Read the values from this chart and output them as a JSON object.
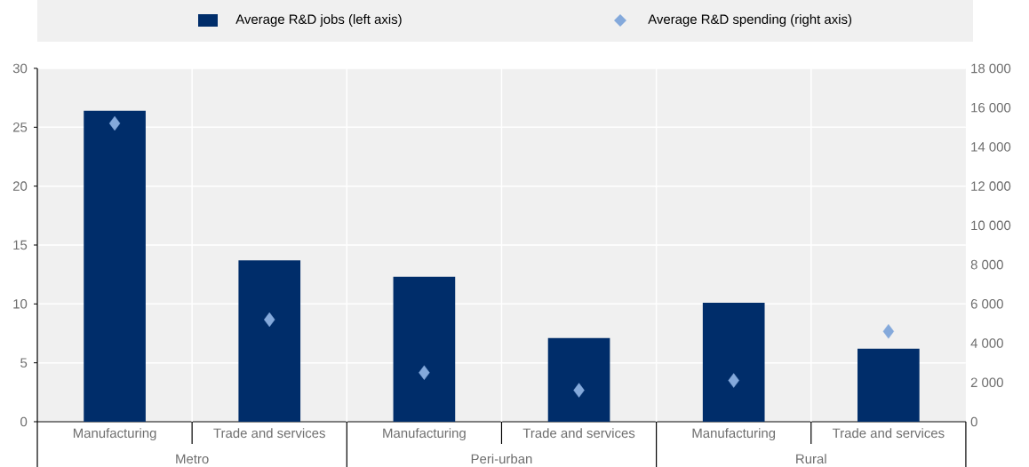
{
  "chart_data": {
    "type": "bar",
    "categories": [
      "Manufacturing",
      "Trade and services",
      "Manufacturing",
      "Trade and services",
      "Manufacturing",
      "Trade and services"
    ],
    "series": [
      {
        "name": "Average R&D jobs (left axis)",
        "color": "#002d6a",
        "values": [
          26.4,
          13.7,
          12.3,
          7.1,
          10.1,
          6.2
        ]
      },
      {
        "name": "Average R&D spending (right axis)",
        "type": "scatter",
        "axis": "y2",
        "marker": "diamond",
        "color": "#84a9db",
        "values": [
          15200,
          5200,
          2500,
          1600,
          2100,
          4600
        ]
      }
    ],
    "ylim": [
      0,
      30
    ],
    "yticks": [
      0,
      5,
      10,
      15,
      20,
      25,
      30
    ],
    "y2lim": [
      0,
      18000
    ],
    "y2ticks": [
      0,
      {
        "value": 2000,
        "label": "2 000"
      },
      {
        "value": 4000,
        "label": "4 000"
      },
      {
        "value": 6000,
        "label": "6 000"
      },
      {
        "value": 8000,
        "label": "8 000"
      },
      {
        "value": 10000,
        "label": "10 000"
      },
      {
        "value": 12000,
        "label": "12 000"
      },
      {
        "value": 14000,
        "label": "14 000"
      },
      {
        "value": 16000,
        "label": "16 000"
      },
      {
        "value": 18000,
        "label": "18 000"
      }
    ],
    "grid": true,
    "legend": "top",
    "annotations": [
      "Metro",
      "Peri-urban",
      "Rural"
    ]
  }
}
